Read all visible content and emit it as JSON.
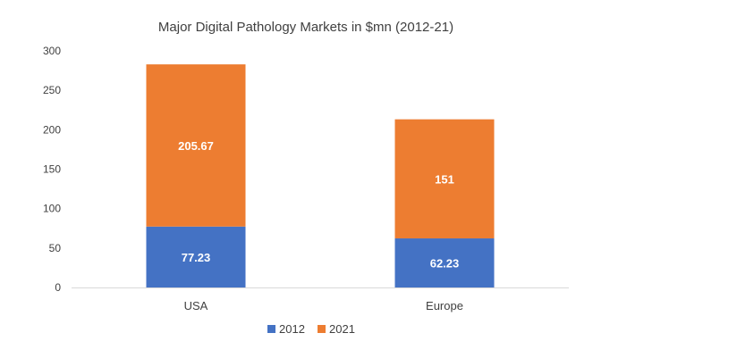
{
  "chart_data": {
    "type": "bar",
    "stacked": true,
    "title": "Major Digital Pathology Markets in $mn (2012-21)",
    "categories": [
      "USA",
      "Europe"
    ],
    "series": [
      {
        "name": "2012",
        "color": "#4472C4",
        "values": [
          77.23,
          62.23
        ],
        "labels": [
          "77.23",
          "62.23"
        ]
      },
      {
        "name": "2021",
        "color": "#ED7D31",
        "values": [
          205.67,
          151
        ],
        "labels": [
          "205.67",
          "151"
        ]
      }
    ],
    "ylim": [
      0,
      300
    ],
    "yticks": [
      0,
      50,
      100,
      150,
      200,
      250,
      300
    ],
    "grid": false,
    "legend": "bottom"
  }
}
